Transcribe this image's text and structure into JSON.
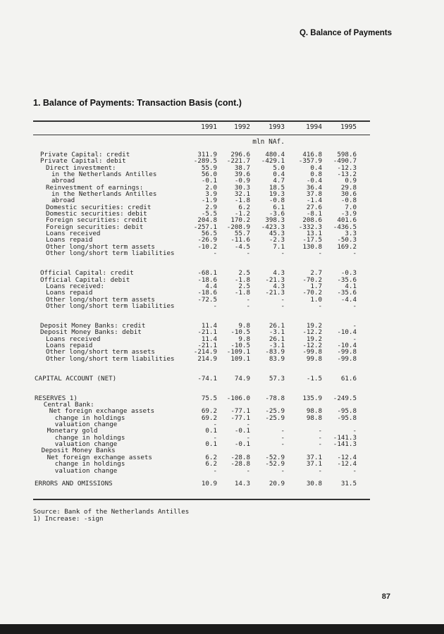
{
  "header": {
    "section": "Q. Balance of Payments"
  },
  "table": {
    "title": "1. Balance of Payments: Transaction Basis (cont.)",
    "years": [
      "1991",
      "1992",
      "1993",
      "1994",
      "1995"
    ],
    "unit": "mln NAf.",
    "rows": [
      {
        "label": "Private Capital: credit",
        "indent": 0,
        "values": [
          "311.9",
          "296.6",
          "480.4",
          "416.8",
          "598.6"
        ]
      },
      {
        "label": "Private Capital: debit",
        "indent": 0,
        "values": [
          "-289.5",
          "-221.7",
          "-429.1",
          "-357.9",
          "-490.7"
        ]
      },
      {
        "label": "Direct investment:",
        "indent": 1,
        "values": [
          "55.9",
          "38.7",
          "5.0",
          "0.4",
          "-12.3"
        ]
      },
      {
        "label": "in the Netherlands Antilles",
        "indent": 2,
        "values": [
          "56.0",
          "39.6",
          "0.4",
          "0.8",
          "-13.2"
        ]
      },
      {
        "label": "abroad",
        "indent": 2,
        "values": [
          "-0.1",
          "-0.9",
          "4.7",
          "-0.4",
          "0.9"
        ]
      },
      {
        "label": "Reinvestment of earnings:",
        "indent": 1,
        "values": [
          "2.0",
          "30.3",
          "18.5",
          "36.4",
          "29.8"
        ]
      },
      {
        "label": "in the Netherlands Antilles",
        "indent": 2,
        "values": [
          "3.9",
          "32.1",
          "19.3",
          "37.8",
          "30.6"
        ]
      },
      {
        "label": "abroad",
        "indent": 2,
        "values": [
          "-1.9",
          "-1.8",
          "-0.8",
          "-1.4",
          "-0.8"
        ]
      },
      {
        "label": "Domestic securities: credit",
        "indent": 1,
        "values": [
          "2.9",
          "6.2",
          "6.1",
          "27.6",
          "7.0"
        ]
      },
      {
        "label": "Domestic securities: debit",
        "indent": 1,
        "values": [
          "-5.5",
          "-1.2",
          "-3.6",
          "-8.1",
          "-3.9"
        ]
      },
      {
        "label": "Foreign securities: credit",
        "indent": 1,
        "values": [
          "204.8",
          "170.2",
          "398.3",
          "208.6",
          "401.6"
        ]
      },
      {
        "label": "Foreign securities: debit",
        "indent": 1,
        "values": [
          "-257.1",
          "-208.9",
          "-423.3",
          "-332.3",
          "-436.5"
        ]
      },
      {
        "label": "Loans received",
        "indent": 1,
        "values": [
          "56.5",
          "55.7",
          "45.3",
          "13.1",
          "3.3"
        ]
      },
      {
        "label": "Loans repaid",
        "indent": 1,
        "values": [
          "-26.9",
          "-11.6",
          "-2.3",
          "-17.5",
          "-50.3"
        ]
      },
      {
        "label": "Other long/short term assets",
        "indent": 1,
        "values": [
          "-10.2",
          "-4.5",
          "7.1",
          "130.8",
          "169.2"
        ]
      },
      {
        "label": "Other long/short term liabilities",
        "indent": 1,
        "values": [
          "-",
          "-",
          "-",
          "-",
          "-"
        ]
      },
      {
        "blank": true
      },
      {
        "blank": true
      },
      {
        "label": "Official Capital: credit",
        "indent": 0,
        "values": [
          "-68.1",
          "2.5",
          "4.3",
          "2.7",
          "-0.3"
        ]
      },
      {
        "label": "Official Capital: debit",
        "indent": 0,
        "values": [
          "-18.6",
          "-1.8",
          "-21.3",
          "-70.2",
          "-35.6"
        ]
      },
      {
        "label": "Loans received:",
        "indent": 1,
        "values": [
          "4.4",
          "2.5",
          "4.3",
          "1.7",
          "4.1"
        ]
      },
      {
        "label": "Loans repaid",
        "indent": 1,
        "values": [
          "-18.6",
          "-1.8",
          "-21.3",
          "-70.2",
          "-35.6"
        ]
      },
      {
        "label": "Other long/short term assets",
        "indent": 1,
        "values": [
          "-72.5",
          "-",
          "-",
          "1.0",
          "-4.4"
        ]
      },
      {
        "label": "Other long/short term liabilities",
        "indent": 1,
        "values": [
          "-",
          "-",
          "-",
          "-",
          "-"
        ]
      },
      {
        "blank": true
      },
      {
        "blank": true
      },
      {
        "label": "Deposit Money Banks: credit",
        "indent": 0,
        "values": [
          "11.4",
          "9.8",
          "26.1",
          "19.2",
          "-"
        ]
      },
      {
        "label": "Deposit Money Banks: debit",
        "indent": 0,
        "values": [
          "-21.1",
          "-10.5",
          "-3.1",
          "-12.2",
          "-10.4"
        ]
      },
      {
        "label": "Loans received",
        "indent": 1,
        "values": [
          "11.4",
          "9.8",
          "26.1",
          "19.2",
          "-"
        ]
      },
      {
        "label": "Loans repaid",
        "indent": 1,
        "values": [
          "-21.1",
          "-10.5",
          "-3.1",
          "-12.2",
          "-10.4"
        ]
      },
      {
        "label": "Other long/short term assets",
        "indent": 1,
        "values": [
          "-214.9",
          "-109.1",
          "-83.9",
          "-99.8",
          "-99.8"
        ]
      },
      {
        "label": "Other long/short term liabilities",
        "indent": 1,
        "values": [
          "214.9",
          "109.1",
          "83.9",
          "99.8",
          "-99.8"
        ]
      },
      {
        "blank": true
      },
      {
        "blank": true
      },
      {
        "label": "CAPITAL ACCOUNT (NET)",
        "indent": -1,
        "values": [
          "-74.1",
          "74.9",
          "57.3",
          "-1.5",
          "61.6"
        ]
      },
      {
        "blank": true
      },
      {
        "blank": true
      },
      {
        "label": "RESERVES 1)",
        "indent": -1,
        "values": [
          "75.5",
          "-106.0",
          "-78.8",
          "135.9",
          "-249.5"
        ]
      },
      {
        "label": "Central Bank:",
        "indent": 0.6,
        "values": [
          "",
          "",
          "",
          "",
          ""
        ]
      },
      {
        "label": "Net foreign exchange assets",
        "indent": 1.6,
        "values": [
          "69.2",
          "-77.1",
          "-25.9",
          "98.8",
          "-95.8"
        ]
      },
      {
        "label": "change in holdings",
        "indent": 2.6,
        "values": [
          "69.2",
          "-77.1",
          "-25.9",
          "98.8",
          "-95.8"
        ]
      },
      {
        "label": "valuation change",
        "indent": 2.6,
        "values": [
          "-",
          "-",
          "",
          "",
          ""
        ]
      },
      {
        "label": "Monetary gold",
        "indent": 1.2,
        "values": [
          "0.1",
          "-0.1",
          "-",
          "-",
          "-"
        ]
      },
      {
        "label": "change in holdings",
        "indent": 2.6,
        "values": [
          "-",
          "-",
          "-",
          "-",
          "-141.3"
        ]
      },
      {
        "label": "valuation change",
        "indent": 2.6,
        "values": [
          "0.1",
          "-0.1",
          "-",
          "-",
          "-141.3"
        ]
      },
      {
        "label": "Deposit Money Banks",
        "indent": 0.2,
        "values": [
          "",
          "",
          "",
          "",
          ""
        ]
      },
      {
        "label": "Net foreign exchange assets",
        "indent": 1.2,
        "values": [
          "6.2",
          "-28.8",
          "-52.9",
          "37.1",
          "-12.4"
        ]
      },
      {
        "label": "change in holdings",
        "indent": 2.6,
        "values": [
          "6.2",
          "-28.8",
          "-52.9",
          "37.1",
          "-12.4"
        ]
      },
      {
        "label": "valuation change",
        "indent": 2.6,
        "values": [
          "-",
          "-",
          "-",
          "-",
          "-"
        ]
      },
      {
        "blank": true
      },
      {
        "label": "ERRORS AND OMISSIONS",
        "indent": -1,
        "values": [
          "10.9",
          "14.3",
          "20.9",
          "30.8",
          "31.5"
        ]
      }
    ]
  },
  "notes": {
    "source": "Source: Bank of the Netherlands Antilles",
    "footnote": "1) Increase: -sign"
  },
  "page_number": "87"
}
